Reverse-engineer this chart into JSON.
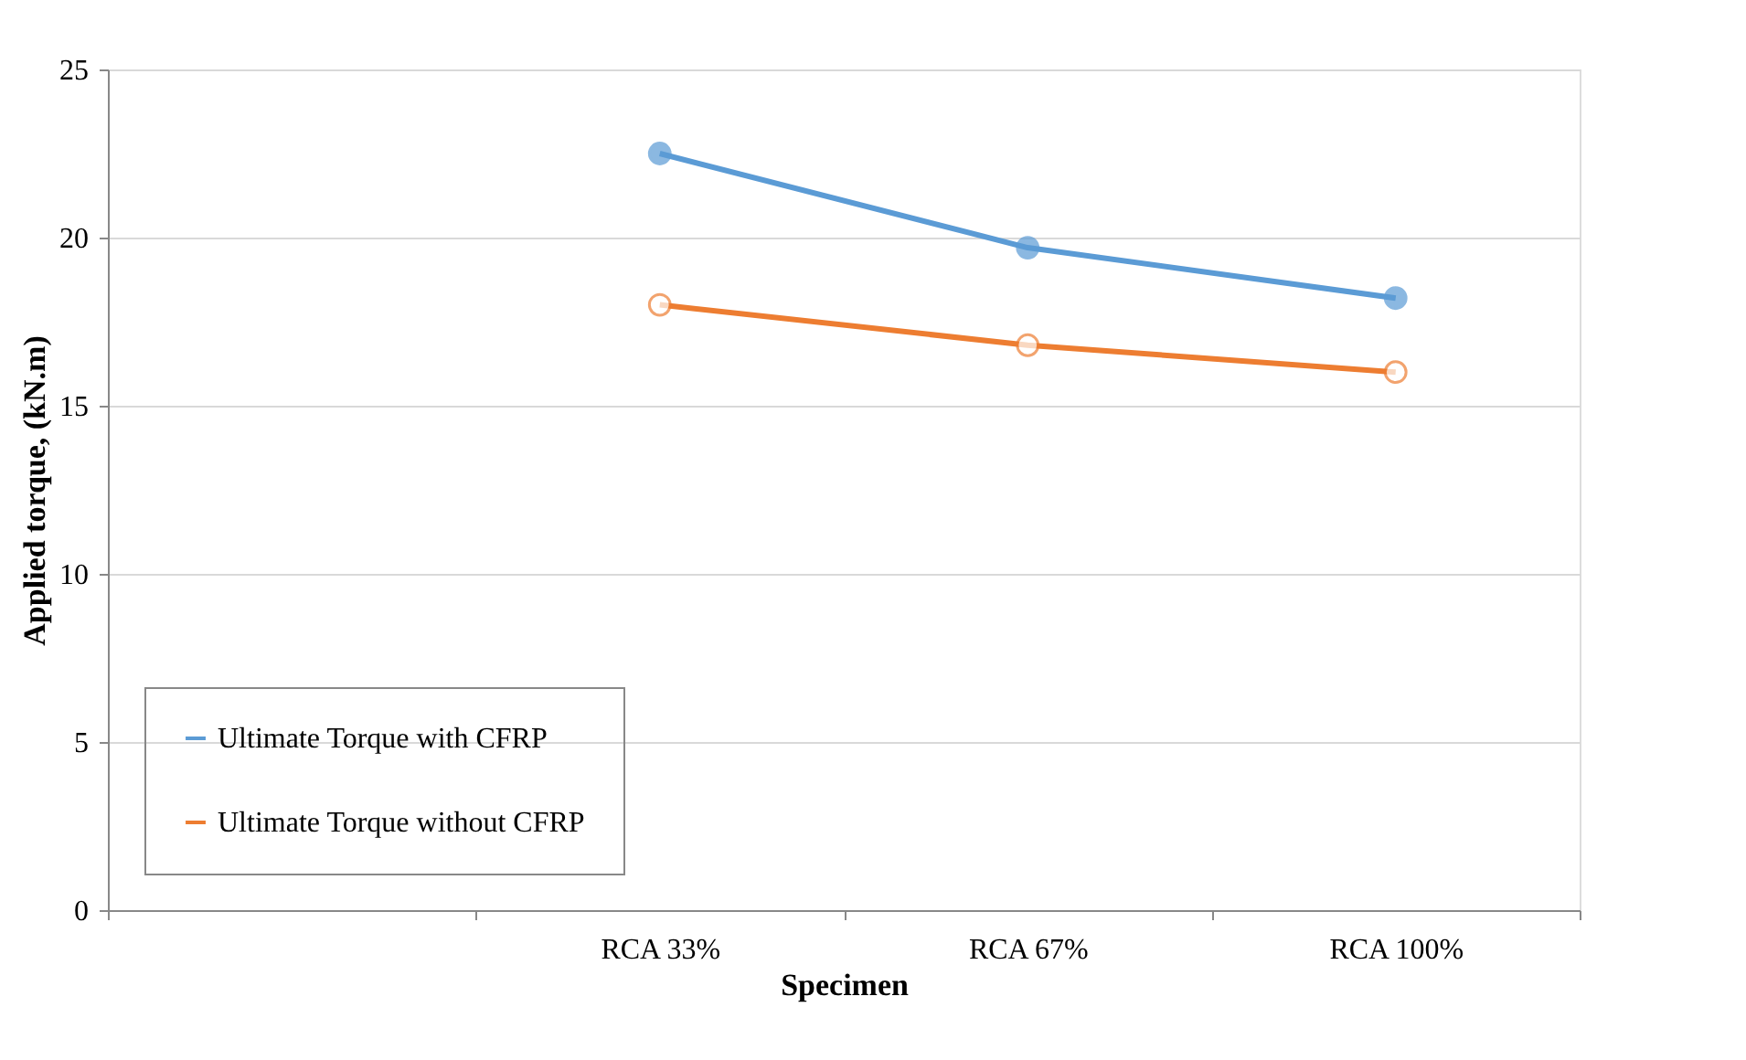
{
  "chart_data": {
    "type": "line",
    "xlabel": "Specimen",
    "ylabel": "Applied torque, (kN.m)",
    "categories": [
      null,
      "RCA 33%",
      "RCA 67%",
      "RCA 100%"
    ],
    "series": [
      {
        "name": "Ultimate Torque with CFRP",
        "color": "#5b9bd5",
        "values": [
          null,
          22.5,
          19.7,
          18.2
        ]
      },
      {
        "name": "Ultimate Torque without CFRP",
        "color": "#ed7d31",
        "values": [
          null,
          18.0,
          16.8,
          16.0
        ]
      }
    ],
    "ylim": [
      0,
      25
    ],
    "yticks": [
      0,
      5,
      10,
      15,
      20,
      25
    ],
    "grid": "y",
    "legend": "bottom left",
    "marker": "circle",
    "line_style": "solid"
  }
}
